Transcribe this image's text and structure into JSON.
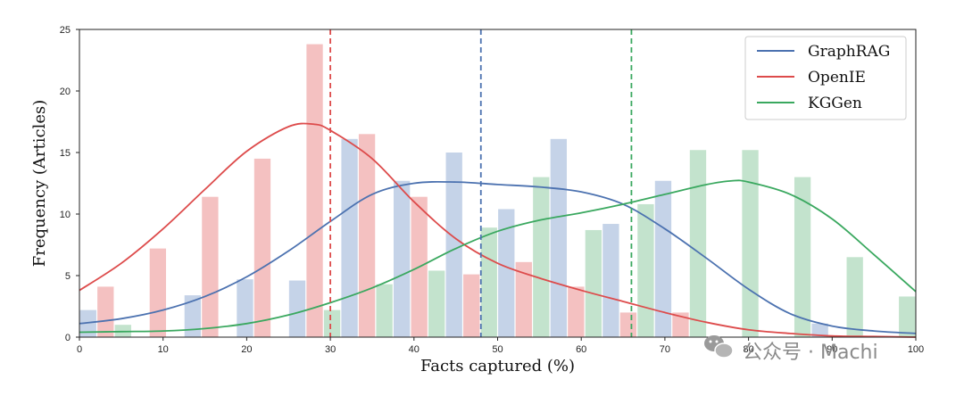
{
  "chart_data": {
    "type": "bar",
    "title": "",
    "xlabel": "Facts captured (%)",
    "ylabel": "Frequency (Articles)",
    "xlim": [
      0,
      100
    ],
    "ylim": [
      0,
      25
    ],
    "x_ticks": [
      0,
      10,
      20,
      30,
      40,
      50,
      60,
      70,
      80,
      90,
      100
    ],
    "y_ticks": [
      0,
      5,
      10,
      15,
      20,
      25
    ],
    "bin_width": 6.25,
    "bin_starts": [
      0,
      6.25,
      12.5,
      18.75,
      25,
      31.25,
      37.5,
      43.75,
      50,
      56.25,
      62.5,
      68.75,
      75,
      81.25,
      87.5,
      93.75
    ],
    "grid": false,
    "legend_position": "top-right",
    "series": [
      {
        "name": "GraphRAG",
        "color": "#4c72b0",
        "bar_color": "#c5d3e8",
        "values": [
          2.2,
          0,
          3.4,
          4.7,
          4.6,
          16.1,
          12.7,
          15.0,
          10.4,
          16.1,
          9.2,
          12.7,
          0,
          0,
          1.1,
          0
        ],
        "kde": [
          [
            0,
            1.1
          ],
          [
            5,
            1.5
          ],
          [
            10,
            2.2
          ],
          [
            15,
            3.3
          ],
          [
            20,
            4.9
          ],
          [
            25,
            7.0
          ],
          [
            30,
            9.4
          ],
          [
            35,
            11.6
          ],
          [
            40,
            12.5
          ],
          [
            45,
            12.6
          ],
          [
            50,
            12.4
          ],
          [
            55,
            12.2
          ],
          [
            60,
            11.8
          ],
          [
            65,
            10.8
          ],
          [
            70,
            8.8
          ],
          [
            75,
            6.4
          ],
          [
            80,
            3.9
          ],
          [
            85,
            1.9
          ],
          [
            90,
            0.9
          ],
          [
            95,
            0.5
          ],
          [
            100,
            0.3
          ]
        ],
        "mean": 48
      },
      {
        "name": "OpenIE",
        "color": "#dd4b4b",
        "bar_color": "#f4c1c1",
        "values": [
          4.1,
          7.2,
          11.4,
          14.5,
          23.8,
          16.5,
          11.4,
          5.1,
          6.1,
          4.1,
          2.0,
          2.0,
          0,
          0,
          0,
          0
        ],
        "kde": [
          [
            0,
            3.8
          ],
          [
            5,
            6.0
          ],
          [
            10,
            8.8
          ],
          [
            15,
            12.0
          ],
          [
            20,
            15.1
          ],
          [
            25,
            17.1
          ],
          [
            28,
            17.3
          ],
          [
            30,
            16.8
          ],
          [
            35,
            14.5
          ],
          [
            40,
            11.0
          ],
          [
            45,
            8.0
          ],
          [
            50,
            6.0
          ],
          [
            55,
            4.8
          ],
          [
            60,
            3.8
          ],
          [
            65,
            2.9
          ],
          [
            70,
            2.0
          ],
          [
            75,
            1.2
          ],
          [
            80,
            0.6
          ],
          [
            85,
            0.3
          ],
          [
            90,
            0.1
          ],
          [
            95,
            0.05
          ],
          [
            100,
            0
          ]
        ],
        "mean": 30
      },
      {
        "name": "KGGen",
        "color": "#3aa85f",
        "bar_color": "#c3e3cd",
        "values": [
          1.0,
          0,
          0,
          0,
          2.2,
          4.3,
          5.4,
          8.9,
          13.0,
          8.7,
          10.8,
          15.2,
          15.2,
          13.0,
          6.5,
          3.3
        ],
        "kde": [
          [
            0,
            0.4
          ],
          [
            5,
            0.45
          ],
          [
            10,
            0.5
          ],
          [
            15,
            0.7
          ],
          [
            20,
            1.1
          ],
          [
            25,
            1.8
          ],
          [
            30,
            2.8
          ],
          [
            35,
            4.0
          ],
          [
            40,
            5.5
          ],
          [
            45,
            7.2
          ],
          [
            50,
            8.6
          ],
          [
            55,
            9.5
          ],
          [
            60,
            10.1
          ],
          [
            65,
            10.8
          ],
          [
            70,
            11.6
          ],
          [
            75,
            12.4
          ],
          [
            78,
            12.7
          ],
          [
            80,
            12.6
          ],
          [
            85,
            11.6
          ],
          [
            90,
            9.6
          ],
          [
            95,
            6.7
          ],
          [
            100,
            3.7
          ]
        ],
        "mean": 66
      }
    ]
  },
  "watermark": {
    "text": "公众号 · Machi",
    "icon": "wechat-icon"
  }
}
